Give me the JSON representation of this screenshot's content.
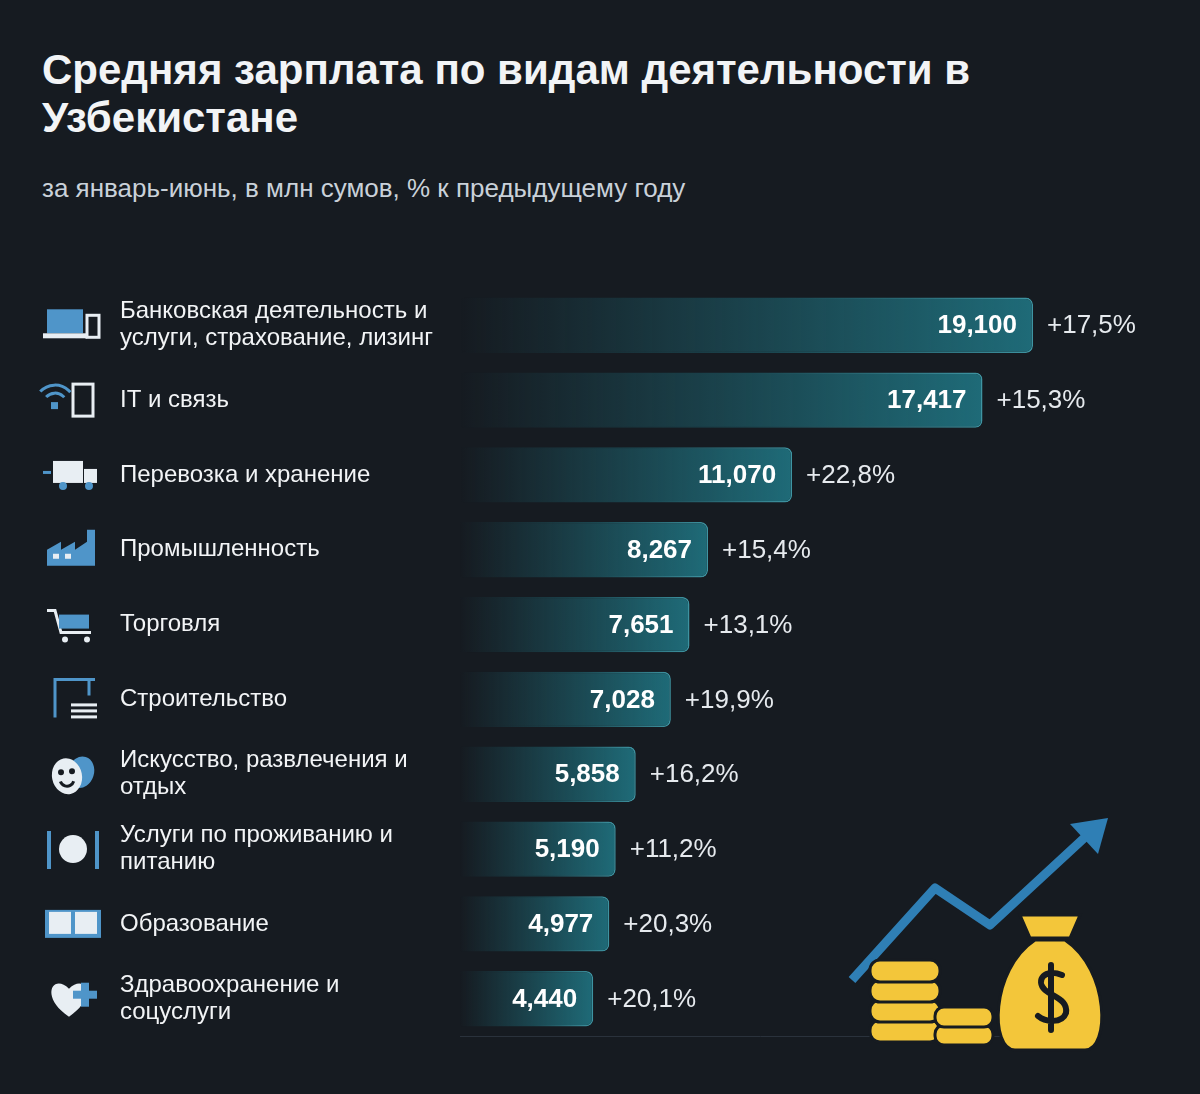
{
  "chart_data": {
    "type": "bar",
    "orientation": "horizontal",
    "title": "Средняя зарплата по видам деятельности в Узбекистане",
    "subtitle": "за январь-июнь, в млн сумов, % к предыдущему году",
    "categories": [
      "Банковская деятельность и услуги, страхование, лизинг",
      "IT и связь",
      "Перевозка и хранение",
      "Промышленность",
      "Торговля",
      "Строительство",
      "Искусство, развлечения и отдых",
      "Услуги по проживанию и питанию",
      "Образование",
      "Здравоохранение и соцуслуги"
    ],
    "values": [
      19.1,
      17.417,
      11.07,
      8.267,
      7.651,
      7.028,
      5.858,
      5.19,
      4.977,
      4.44
    ],
    "value_labels": [
      "19,100",
      "17,417",
      "11,070",
      "8,267",
      "7,651",
      "7,028",
      "5,858",
      "5,190",
      "4,977",
      "4,440"
    ],
    "changes": [
      17.5,
      15.3,
      22.8,
      15.4,
      13.1,
      19.9,
      16.2,
      11.2,
      20.3,
      20.1
    ],
    "change_labels": [
      "+17,5%",
      "+15,3%",
      "+22,8%",
      "+15,4%",
      "+13,1%",
      "+19,9%",
      "+16,2%",
      "+11,2%",
      "+20,3%",
      "+20,1%"
    ],
    "color": "#1f6b78",
    "xlim": [
      0,
      20
    ],
    "xticks": [],
    "grid": false,
    "data_labels": true,
    "tick_labels": "y"
  }
}
